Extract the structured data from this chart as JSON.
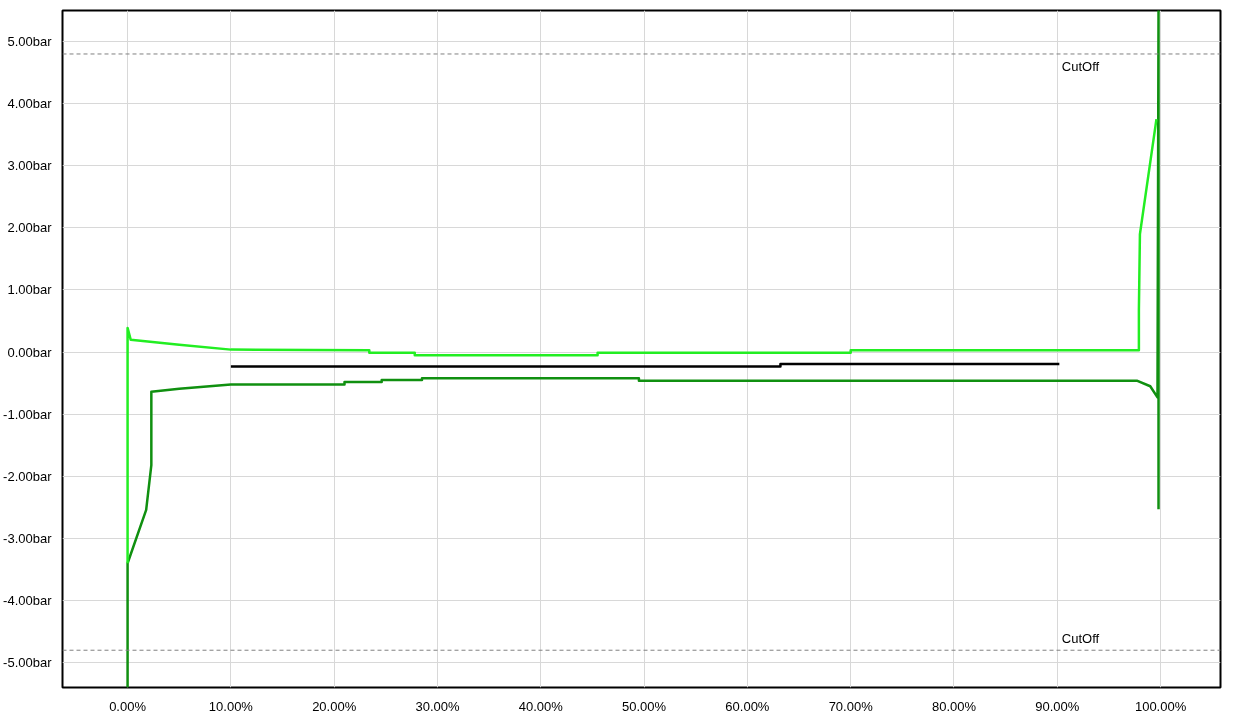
{
  "chart_data": {
    "type": "line",
    "xlim": [
      -6.3,
      105.8
    ],
    "ylim": [
      -5.4,
      5.5
    ],
    "xticks": [
      {
        "value": 0,
        "label": "0.00%"
      },
      {
        "value": 10,
        "label": "10.00%"
      },
      {
        "value": 20,
        "label": "20.00%"
      },
      {
        "value": 30,
        "label": "30.00%"
      },
      {
        "value": 40,
        "label": "40.00%"
      },
      {
        "value": 50,
        "label": "50.00%"
      },
      {
        "value": 60,
        "label": "60.00%"
      },
      {
        "value": 70,
        "label": "70.00%"
      },
      {
        "value": 80,
        "label": "80.00%"
      },
      {
        "value": 90,
        "label": "90.00%"
      },
      {
        "value": 100,
        "label": "100.00%"
      }
    ],
    "yticks": [
      {
        "value": -5,
        "label": "-5.00bar"
      },
      {
        "value": -4,
        "label": "-4.00bar"
      },
      {
        "value": -3,
        "label": "-3.00bar"
      },
      {
        "value": -2,
        "label": "-2.00bar"
      },
      {
        "value": -1,
        "label": "-1.00bar"
      },
      {
        "value": 0,
        "label": "0.00bar"
      },
      {
        "value": 1,
        "label": "1.00bar"
      },
      {
        "value": 2,
        "label": "2.00bar"
      },
      {
        "value": 3,
        "label": "3.00bar"
      },
      {
        "value": 4,
        "label": "4.00bar"
      },
      {
        "value": 5,
        "label": "5.00bar"
      }
    ],
    "grid": true,
    "line_style": "solid",
    "series": [
      {
        "color": "#109010",
        "x": [
          0,
          0,
          1.8,
          2.3,
          2.3,
          5,
          10,
          21,
          21,
          24.6,
          24.6,
          28.5,
          28.5,
          49.5,
          49.5,
          97.7,
          99.0,
          99.7,
          99.8,
          99.8
        ],
        "values": [
          -5.4,
          -3.4,
          -2.54,
          -1.82,
          -0.64,
          -0.59,
          -0.52,
          -0.52,
          -0.48,
          -0.48,
          -0.45,
          -0.45,
          -0.42,
          -0.42,
          -0.46,
          -0.46,
          -0.55,
          -0.73,
          5.5,
          -2.53
        ]
      },
      {
        "color": "#22ee22",
        "x": [
          0,
          0,
          0.3,
          5,
          10,
          23.4,
          23.4,
          27.8,
          27.8,
          45.5,
          45.5,
          70,
          70,
          97.9,
          97.9,
          98.0,
          99.6
        ],
        "values": [
          -3.4,
          0.39,
          0.2,
          0.12,
          0.04,
          0.03,
          -0.01,
          -0.01,
          -0.05,
          -0.05,
          -0.01,
          -0.01,
          0.03,
          0.03,
          0.68,
          1.9,
          3.75
        ]
      },
      {
        "color": "#000000",
        "x": [
          10,
          63.2,
          63.2,
          90.2
        ],
        "values": [
          -0.23,
          -0.23,
          -0.19,
          -0.19
        ]
      }
    ],
    "ref_lines": [
      {
        "axis": "y",
        "value": 4.8,
        "label": "CutOff",
        "color": "#808080",
        "line_style": "dashed"
      },
      {
        "axis": "y",
        "value": -4.8,
        "label": "CutOff",
        "color": "#808080",
        "line_style": "dashed"
      }
    ]
  }
}
